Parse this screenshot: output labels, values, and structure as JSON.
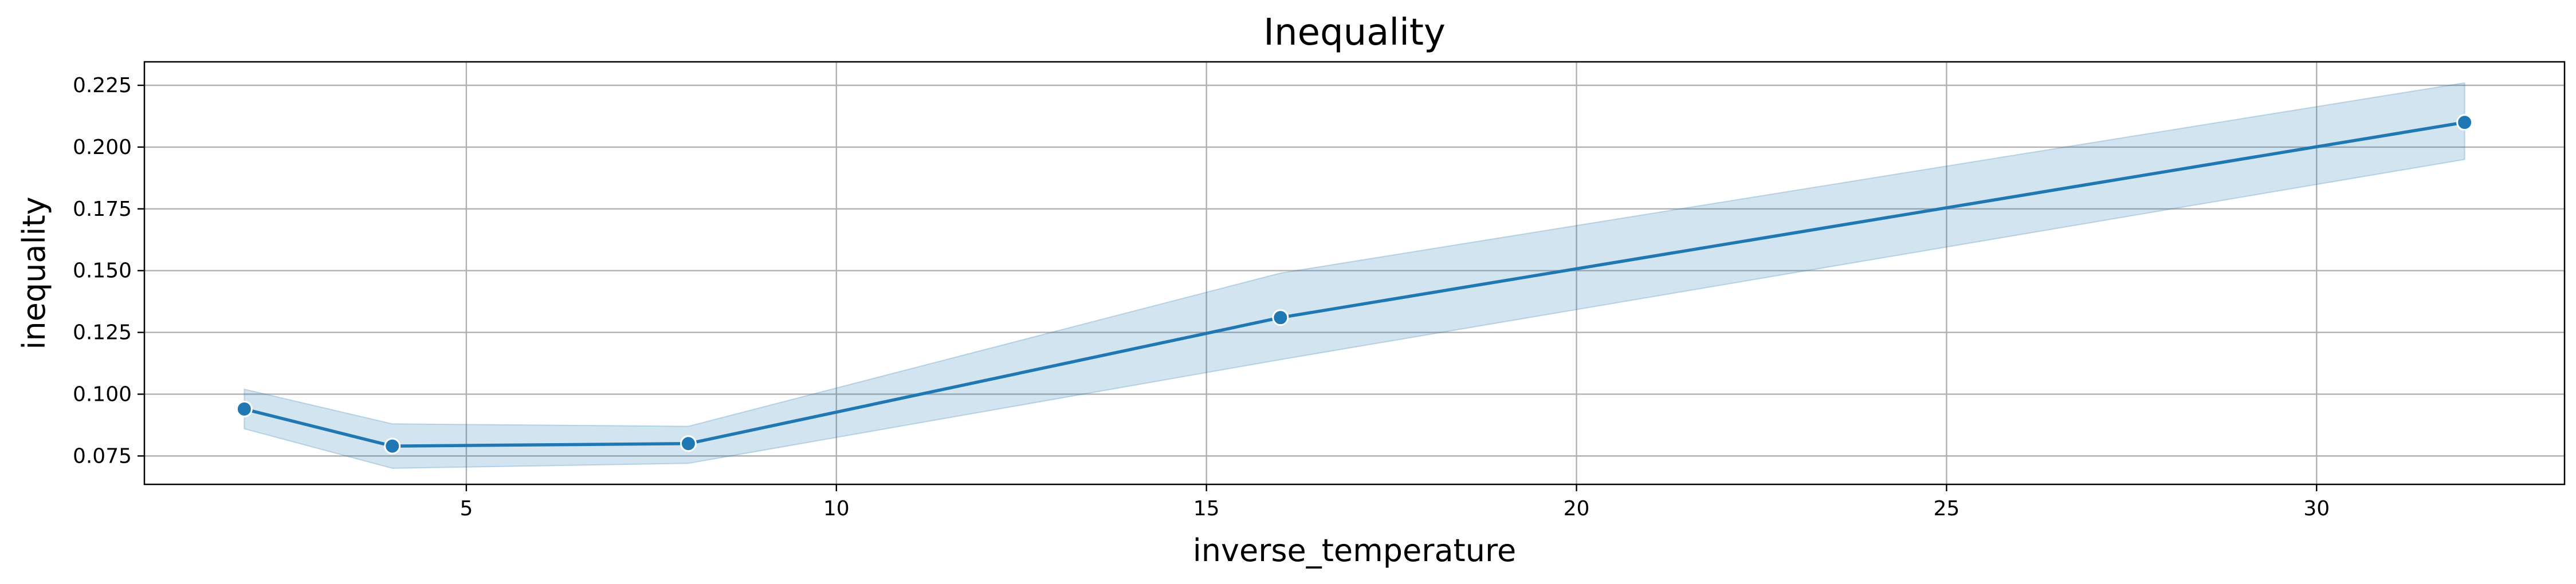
{
  "chart_data": {
    "type": "line",
    "title": "Inequality",
    "xlabel": "inverse_temperature",
    "ylabel": "inequality",
    "xlim": [
      0.65,
      33.35
    ],
    "ylim": [
      0.0635,
      0.2345
    ],
    "x_ticks": [
      5,
      10,
      15,
      20,
      25,
      30
    ],
    "y_ticks": [
      0.075,
      0.1,
      0.125,
      0.15,
      0.175,
      0.2,
      0.225
    ],
    "x_tick_labels": [
      "5",
      "10",
      "15",
      "20",
      "25",
      "30"
    ],
    "y_tick_labels": [
      "0.075",
      "0.100",
      "0.125",
      "0.150",
      "0.175",
      "0.200",
      "0.225"
    ],
    "grid": true,
    "series": [
      {
        "x": [
          2,
          4,
          8,
          16,
          32
        ],
        "y": [
          0.094,
          0.079,
          0.08,
          0.131,
          0.21
        ],
        "ci_lower": [
          0.086,
          0.07,
          0.072,
          0.114,
          0.195
        ],
        "ci_upper": [
          0.102,
          0.088,
          0.087,
          0.149,
          0.226
        ],
        "color": "#1f77b4",
        "band_color": "#1f77b4",
        "marker": "circle"
      }
    ]
  }
}
